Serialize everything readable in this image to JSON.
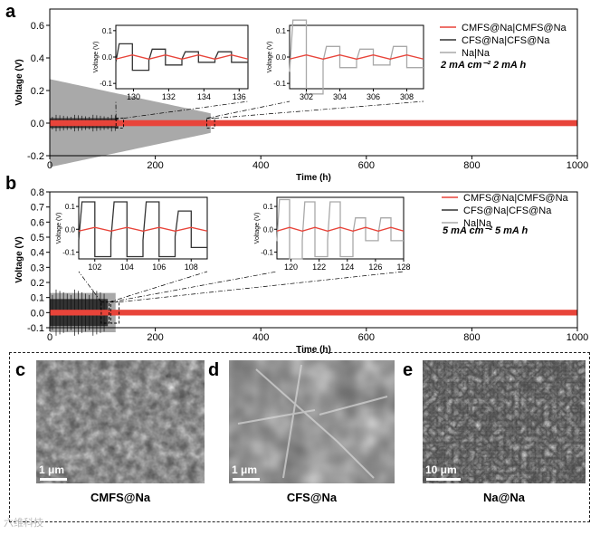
{
  "colors": {
    "cmfs": "#e8443a",
    "cfs": "#333333",
    "na": "#a9a9a9"
  },
  "chart_data": [
    {
      "panel": "a",
      "type": "line",
      "xlabel": "Time (h)",
      "ylabel": "Voltage (V)",
      "xlim": [
        0,
        1000
      ],
      "ylim": [
        -0.2,
        0.7
      ],
      "xticks": [
        0,
        200,
        400,
        600,
        800,
        1000
      ],
      "yticks": [
        -0.2,
        0.0,
        0.2,
        0.4,
        0.6
      ],
      "condition": "2 mA cm⁻² 2 mA h",
      "series": [
        {
          "name": "CMFS@Na|CMFS@Na",
          "color": "#e8443a",
          "x_end": 1000,
          "amplitude": 0.01
        },
        {
          "name": "CFS@Na|CFS@Na",
          "color": "#333333",
          "x_end": 130,
          "amplitude": 0.03
        },
        {
          "name": "Na|Na",
          "color": "#a9a9a9",
          "x_end": 305,
          "amplitude_start": 0.27,
          "amplitude_end": 0.06
        }
      ],
      "insets": [
        {
          "xlim": [
            129,
            136.5
          ],
          "xticks": [
            130,
            132,
            134,
            136
          ],
          "ylim": [
            -0.12,
            0.12
          ],
          "yticks": [
            -0.1,
            0.0,
            0.1
          ],
          "ylabel": "Voltage (V)",
          "cfs_amp": [
            0.05,
            0.03,
            0.02,
            0.02
          ],
          "cmfs_amp": 0.008
        },
        {
          "xlim": [
            301,
            309
          ],
          "xticks": [
            302,
            304,
            306,
            308
          ],
          "ylim": [
            -0.12,
            0.12
          ],
          "yticks": [
            -0.1,
            0.0,
            0.1
          ],
          "ylabel": "Voltage (V)",
          "na_amp": [
            0.14,
            0.04,
            0.03,
            0.04
          ],
          "cmfs_amp": 0.008
        }
      ]
    },
    {
      "panel": "b",
      "type": "line",
      "xlabel": "Time (h)",
      "ylabel": "Voltage (V)",
      "xlim": [
        0,
        1000
      ],
      "ylim": [
        -0.1,
        0.8
      ],
      "xticks": [
        0,
        200,
        400,
        600,
        800,
        1000
      ],
      "yticks": [
        -0.1,
        0.0,
        0.1,
        0.2,
        0.3,
        0.4,
        0.5,
        0.6,
        0.7,
        0.8
      ],
      "condition": "5 mA cm⁻² 5 mA h",
      "series": [
        {
          "name": "CMFS@Na|CMFS@Na",
          "color": "#e8443a",
          "x_end": 1000,
          "amplitude": 0.01
        },
        {
          "name": "CFS@Na|CFS@Na",
          "color": "#333333",
          "x_end": 110,
          "amplitude": 0.09
        },
        {
          "name": "Na|Na",
          "color": "#a9a9a9",
          "x_end": 128,
          "amplitude": 0.13
        }
      ],
      "insets": [
        {
          "xlim": [
            101,
            109
          ],
          "xticks": [
            102,
            104,
            106,
            108
          ],
          "ylim": [
            -0.13,
            0.14
          ],
          "yticks": [
            -0.1,
            0.0,
            0.1
          ],
          "ylabel": "Voltage (V)",
          "cfs_amp": [
            0.12,
            0.12,
            0.12,
            0.08
          ],
          "cmfs_amp": 0.008
        },
        {
          "xlim": [
            119,
            128
          ],
          "xticks": [
            120,
            122,
            124,
            126,
            128
          ],
          "ylim": [
            -0.13,
            0.14
          ],
          "yticks": [
            -0.1,
            0.0,
            0.1
          ],
          "ylabel": "Voltage (V)",
          "na_amp": [
            0.13,
            0.12,
            0.12,
            0.05,
            0.05
          ],
          "cmfs_amp": 0.008
        }
      ]
    }
  ],
  "panels": {
    "a_letter": "a",
    "b_letter": "b",
    "c_letter": "c",
    "d_letter": "d",
    "e_letter": "e"
  },
  "sem": [
    {
      "letter": "c",
      "label": "CMFS@Na",
      "scale": "1 μm"
    },
    {
      "letter": "d",
      "label": "CFS@Na",
      "scale": "1 μm"
    },
    {
      "letter": "e",
      "label": "Na@Na",
      "scale": "10 μm"
    }
  ],
  "watermark": "六维科技"
}
